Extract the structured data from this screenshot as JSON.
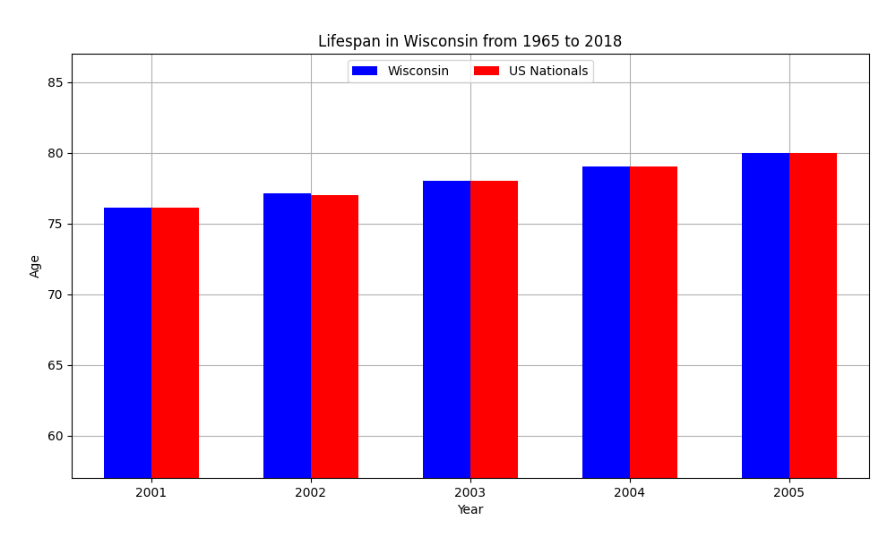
{
  "chart_data": {
    "type": "bar",
    "title": "Lifespan in Wisconsin from 1965 to 2018",
    "x_label": "Year",
    "y_label": "Age",
    "categories": [
      "2001",
      "2002",
      "2003",
      "2004",
      "2005"
    ],
    "series": [
      {
        "name": "Wisconsin",
        "color": "#0000ff",
        "values": [
          76.1,
          77.1,
          78.0,
          79.0,
          80.0
        ]
      },
      {
        "name": "US Nationals",
        "color": "#ff0000",
        "values": [
          76.1,
          77.0,
          78.0,
          79.0,
          80.0
        ]
      }
    ],
    "ylim": [
      57,
      87
    ],
    "yticks": [
      60,
      65,
      70,
      75,
      80,
      85
    ],
    "grid": true,
    "legend": "upper center"
  }
}
